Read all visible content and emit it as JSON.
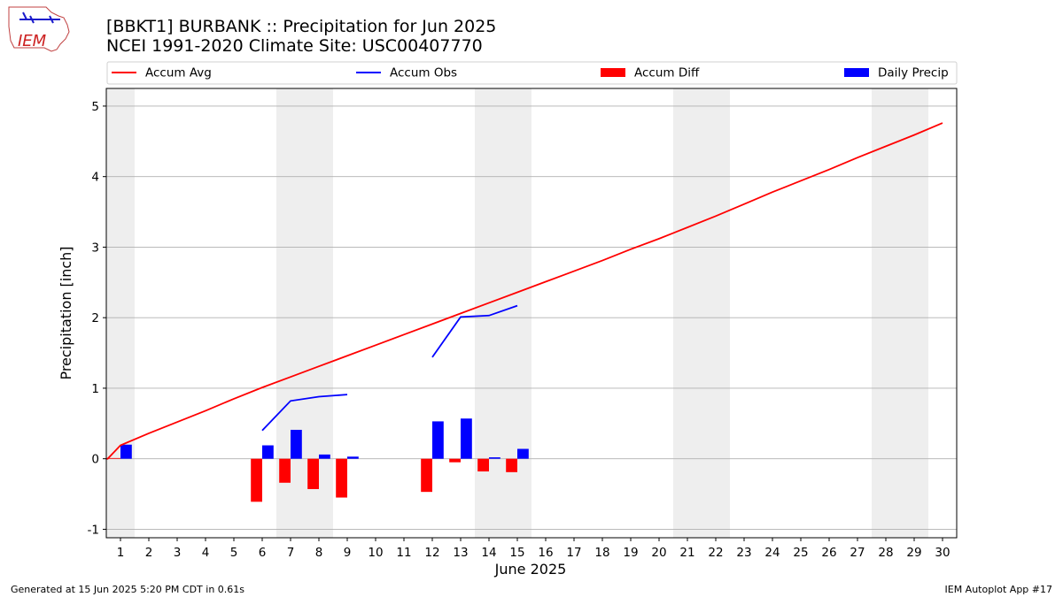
{
  "header": {
    "title_line1": "[BBKT1] BURBANK :: Precipitation for Jun 2025",
    "title_line2": "NCEI 1991-2020 Climate Site: USC00407770"
  },
  "logo": {
    "text": "IEM"
  },
  "footer": {
    "left": "Generated at 15 Jun 2025 5:20 PM CDT in 0.61s",
    "right": "IEM Autoplot App #17"
  },
  "colors": {
    "accum_avg": "#ff0000",
    "accum_obs": "#0000ff",
    "accum_diff": "#ff0000",
    "daily_precip": "#0000ff",
    "weekend_band": "#eeeeee",
    "grid": "#b0b0b0"
  },
  "chart_data": {
    "type": "bar",
    "xlabel": "June 2025",
    "ylabel": "Precipitation [inch]",
    "xlim": [
      0.5,
      30.5
    ],
    "ylim": [
      -1.12,
      5.25
    ],
    "yticks": [
      -1,
      0,
      1,
      2,
      3,
      4,
      5
    ],
    "xticks": [
      1,
      2,
      3,
      4,
      5,
      6,
      7,
      8,
      9,
      10,
      11,
      12,
      13,
      14,
      15,
      16,
      17,
      18,
      19,
      20,
      21,
      22,
      23,
      24,
      25,
      26,
      27,
      28,
      29,
      30
    ],
    "grid": "horizontal",
    "legend_placement": "top",
    "legend": [
      "Accum Avg",
      "Accum Obs",
      "Accum Diff",
      "Daily Precip"
    ],
    "weekend_days": [
      1,
      7,
      8,
      14,
      15,
      21,
      22,
      28,
      29
    ],
    "series": [
      {
        "name": "Accum Avg",
        "type": "line",
        "x": [
          1,
          2,
          3,
          4,
          5,
          6,
          7,
          8,
          9,
          10,
          11,
          12,
          13,
          14,
          15,
          16,
          17,
          18,
          19,
          20,
          21,
          22,
          23,
          24,
          25,
          26,
          27,
          28,
          29,
          30
        ],
        "values": [
          0.19,
          0.36,
          0.52,
          0.68,
          0.85,
          1.01,
          1.16,
          1.31,
          1.46,
          1.61,
          1.76,
          1.91,
          2.06,
          2.21,
          2.36,
          2.51,
          2.66,
          2.81,
          2.97,
          3.12,
          3.28,
          3.44,
          3.61,
          3.78,
          3.94,
          4.1,
          4.27,
          4.43,
          4.59,
          4.76
        ]
      },
      {
        "name": "Accum Obs",
        "type": "line",
        "segments": [
          {
            "x": [
              1
            ],
            "values": [
              0.2
            ]
          },
          {
            "x": [
              6,
              7,
              8,
              9
            ],
            "values": [
              0.4,
              0.82,
              0.88,
              0.91
            ]
          },
          {
            "x": [
              12,
              13,
              14,
              15
            ],
            "values": [
              1.44,
              2.01,
              2.03,
              2.17
            ]
          }
        ]
      },
      {
        "name": "Accum Diff",
        "type": "bar",
        "x": [
          1,
          6,
          7,
          8,
          9,
          12,
          13,
          14,
          15
        ],
        "values": [
          0.01,
          -0.61,
          -0.34,
          -0.43,
          -0.55,
          -0.47,
          -0.05,
          -0.18,
          -0.19
        ]
      },
      {
        "name": "Daily Precip",
        "type": "bar",
        "x": [
          1,
          6,
          7,
          8,
          9,
          12,
          13,
          14,
          15
        ],
        "values": [
          0.2,
          0.19,
          0.41,
          0.06,
          0.03,
          0.53,
          0.57,
          0.02,
          0.14
        ]
      }
    ]
  }
}
